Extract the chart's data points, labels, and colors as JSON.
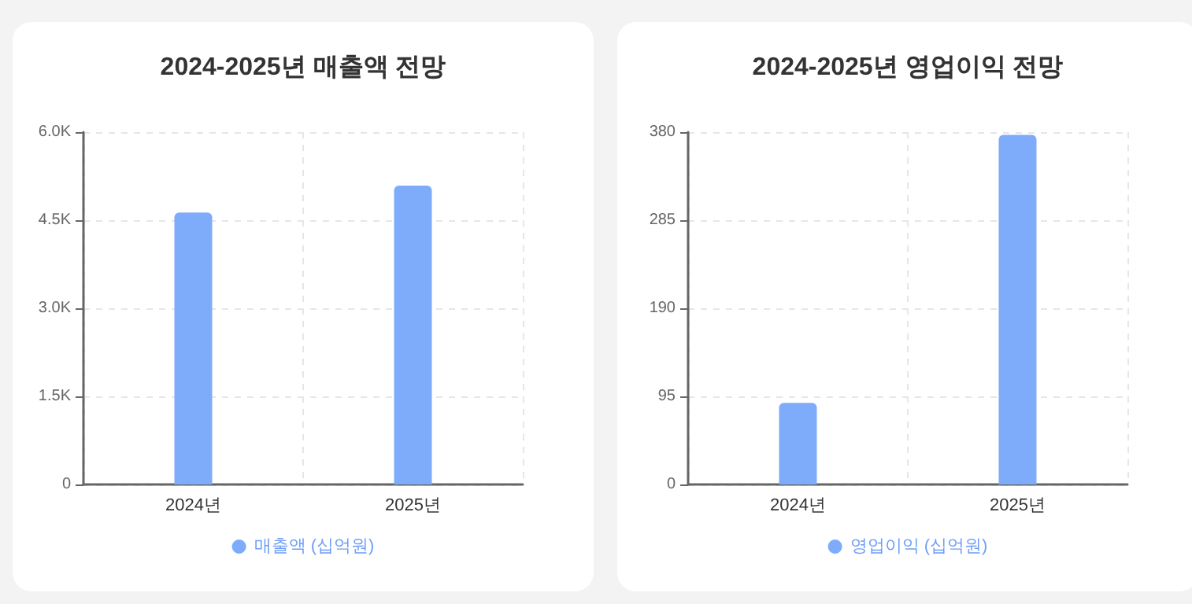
{
  "chart_data": [
    {
      "type": "bar",
      "title": "2024-2025년 매출액 전망",
      "categories": [
        "2024년",
        "2025년"
      ],
      "series": [
        {
          "name": "매출액 (십억원)",
          "color": "#7eacfb",
          "values": [
            4630,
            5090
          ]
        }
      ],
      "ylim": [
        0,
        6000
      ],
      "yticks": [
        0,
        {
          "value": 1500,
          "label": "1.5K"
        },
        {
          "value": 3000,
          "label": "3.0K"
        },
        {
          "value": 4500,
          "label": "4.5K"
        },
        {
          "value": 6000,
          "label": "6.0K"
        }
      ],
      "grid": true,
      "legend": "bottom"
    },
    {
      "type": "bar",
      "title": "2024-2025년 영업이익 전망",
      "categories": [
        "2024년",
        "2025년"
      ],
      "series": [
        {
          "name": "영업이익 (십억원)",
          "color": "#7eacfb",
          "values": [
            88,
            377
          ]
        }
      ],
      "ylim": [
        0,
        380
      ],
      "yticks": [
        0,
        95,
        190,
        285,
        380
      ],
      "grid": true,
      "legend": "bottom"
    }
  ]
}
